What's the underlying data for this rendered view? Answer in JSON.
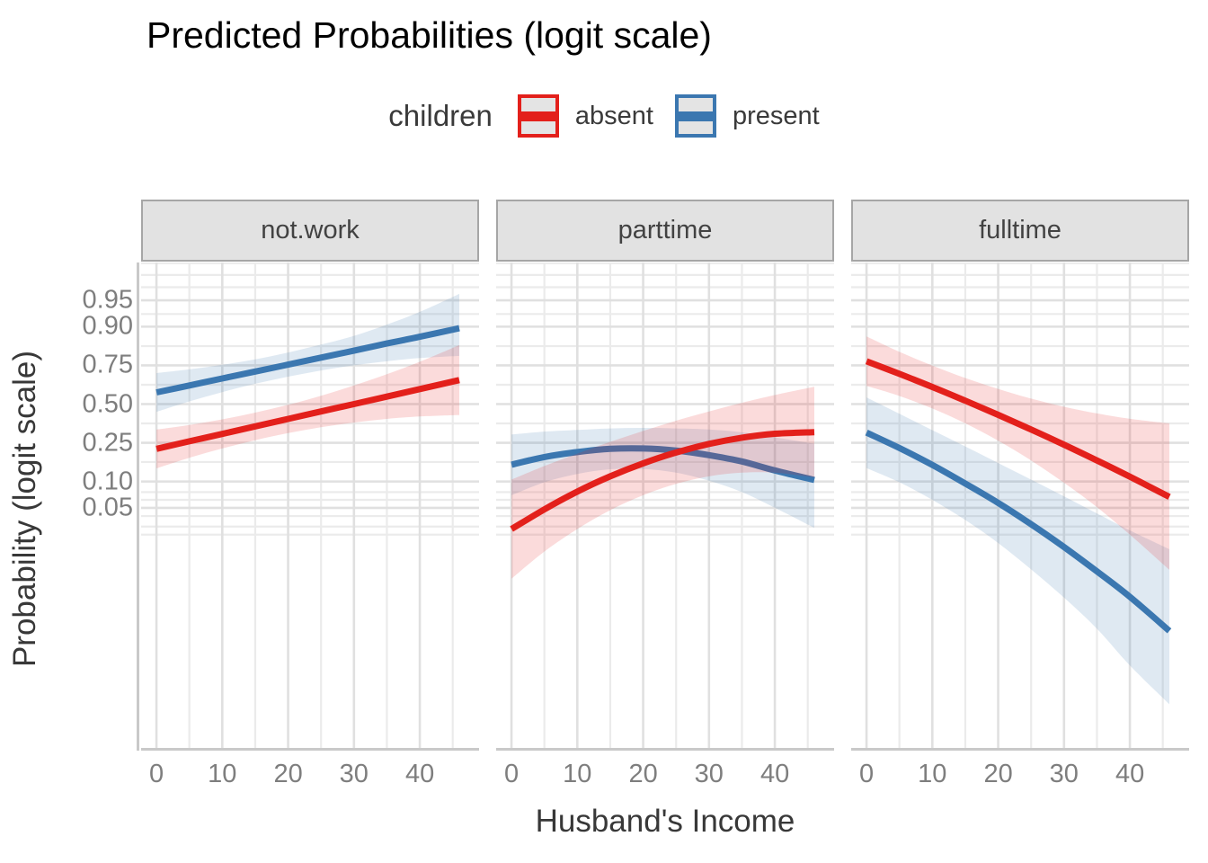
{
  "title": "Predicted Probabilities (logit scale)",
  "legend": {
    "title": "children",
    "items": [
      {
        "label": "absent",
        "color": "#e3201b",
        "key_fill": "#e4e4e4"
      },
      {
        "label": "present",
        "color": "#3b77b0",
        "key_fill": "#e4e4e4"
      }
    ]
  },
  "axes": {
    "x": {
      "title": "Husband's Income",
      "tick_labels": [
        "0",
        "10",
        "20",
        "30",
        "40"
      ],
      "tick_values": [
        0,
        10,
        20,
        30,
        40
      ],
      "range": [
        -2.33,
        49.0
      ]
    },
    "y": {
      "title": "Probability (logit scale)",
      "scale": "logit",
      "tick_labels": [
        "0.95",
        "0.90",
        "0.75",
        "0.50",
        "0.25",
        "0.10",
        "0.05"
      ],
      "tick_values": [
        0.95,
        0.9,
        0.75,
        0.5,
        0.25,
        0.1,
        0.05
      ]
    }
  },
  "colors": {
    "absent_line": "#e3201b",
    "present_line": "#3b77b0",
    "absent_fill": "rgba(228,33,28,0.16)",
    "present_fill": "rgba(59,119,176,0.16)",
    "grid_major": "#e0e0e0",
    "grid_minor": "#ebebeb",
    "axis_line": "#c9c9c9",
    "strip_bg": "#e2e2e2",
    "strip_border": "#a6a6a6"
  },
  "chart_data": {
    "type": "line",
    "title": "Predicted Probabilities (logit scale)",
    "xlabel": "Husband's Income",
    "ylabel": "Probability (logit scale)",
    "y_transform": "logit",
    "legend_position": "top",
    "grid": true,
    "x": [
      0,
      5,
      10,
      15,
      20,
      25,
      30,
      35,
      40,
      46
    ],
    "x_major_gridlines": [
      0,
      10,
      20,
      30,
      40
    ],
    "x_minor_gridlines": [
      5,
      15,
      25,
      35,
      45
    ],
    "y_major_gridlines": [
      0.95,
      0.9,
      0.75,
      0.5,
      0.25,
      0.1,
      0.05
    ],
    "y_minor_gridlines": [
      0.982,
      0.975,
      0.965,
      0.928,
      0.838,
      0.634,
      0.366,
      0.162,
      0.076,
      0.062,
      0.04,
      0.03,
      0.024
    ],
    "facets": [
      {
        "label": "not.work",
        "series": [
          {
            "name": "present",
            "values": [
              0.582,
              0.629,
              0.674,
              0.716,
              0.754,
              0.789,
              0.82,
              0.848,
              0.871,
              0.896
            ],
            "ci_lower": [
              0.445,
              0.519,
              0.584,
              0.64,
              0.685,
              0.722,
              0.75,
              0.771,
              0.787,
              0.797
            ],
            "ci_upper": [
              0.707,
              0.728,
              0.753,
              0.781,
              0.812,
              0.844,
              0.874,
              0.905,
              0.932,
              0.958
            ]
          },
          {
            "name": "absent",
            "values": [
              0.219,
              0.258,
              0.3,
              0.347,
              0.396,
              0.448,
              0.5,
              0.553,
              0.605,
              0.664
            ],
            "ci_lower": [
              0.139,
              0.179,
              0.221,
              0.264,
              0.305,
              0.341,
              0.372,
              0.396,
              0.413,
              0.423
            ],
            "ci_upper": [
              0.327,
              0.356,
              0.393,
              0.44,
              0.495,
              0.559,
              0.629,
              0.7,
              0.769,
              0.842
            ]
          }
        ]
      },
      {
        "label": "parttime",
        "series": [
          {
            "name": "present",
            "values": [
              0.152,
              0.182,
              0.204,
              0.219,
              0.221,
              0.211,
              0.19,
              0.164,
              0.132,
              0.104
            ],
            "ci_lower": [
              0.07,
              0.098,
              0.121,
              0.136,
              0.137,
              0.125,
              0.102,
              0.076,
              0.05,
              0.029
            ],
            "ci_upper": [
              0.297,
              0.314,
              0.324,
              0.334,
              0.337,
              0.334,
              0.327,
              0.31,
              0.28,
              0.245
            ]
          },
          {
            "name": "absent",
            "values": [
              0.028,
              0.048,
              0.077,
              0.114,
              0.157,
              0.202,
              0.244,
              0.278,
              0.301,
              0.311
            ],
            "ci_lower": [
              0.007,
              0.015,
              0.028,
              0.047,
              0.07,
              0.094,
              0.114,
              0.125,
              0.125,
              0.111
            ],
            "ci_upper": [
              0.105,
              0.147,
              0.197,
              0.255,
              0.318,
              0.384,
              0.448,
              0.509,
              0.564,
              0.62
            ]
          }
        ]
      },
      {
        "label": "fulltime",
        "series": [
          {
            "name": "present",
            "values": [
              0.308,
              0.223,
              0.151,
              0.095,
              0.057,
              0.032,
              0.017,
              0.0086,
              0.0042,
              0.0016
            ],
            "ci_lower": [
              0.14,
              0.098,
              0.062,
              0.036,
              0.019,
              0.0091,
              0.0041,
              0.0017,
              0.0006,
              0.0002
            ],
            "ci_upper": [
              0.547,
              0.432,
              0.323,
              0.231,
              0.158,
              0.105,
              0.068,
              0.043,
              0.027,
              0.016
            ]
          },
          {
            "name": "absent",
            "values": [
              0.771,
              0.702,
              0.619,
              0.524,
              0.424,
              0.327,
              0.24,
              0.168,
              0.113,
              0.067
            ],
            "ci_lower": [
              0.626,
              0.557,
              0.469,
              0.367,
              0.261,
              0.168,
              0.097,
              0.051,
              0.024,
              0.009
            ],
            "ci_upper": [
              0.872,
              0.815,
              0.749,
              0.677,
              0.606,
              0.539,
              0.481,
              0.434,
              0.397,
              0.366
            ]
          }
        ]
      }
    ]
  }
}
